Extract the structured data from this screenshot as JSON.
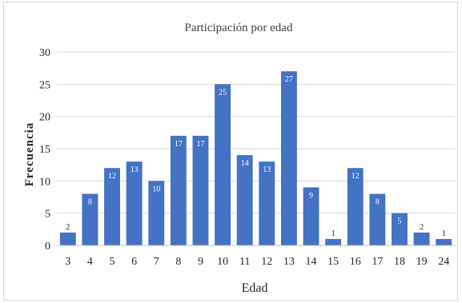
{
  "chart_data": {
    "type": "bar",
    "title": "Participación por edad",
    "xlabel": "Edad",
    "ylabel": "Frecuencia",
    "categories": [
      "3",
      "4",
      "5",
      "6",
      "7",
      "8",
      "9",
      "10",
      "11",
      "12",
      "13",
      "14",
      "15",
      "16",
      "17",
      "18",
      "19",
      "24"
    ],
    "values": [
      2,
      8,
      12,
      13,
      10,
      17,
      17,
      25,
      14,
      13,
      27,
      9,
      1,
      12,
      8,
      5,
      2,
      1
    ],
    "ylim": [
      0,
      30
    ],
    "yticks": [
      0,
      5,
      10,
      15,
      20,
      25,
      30
    ],
    "grid": true,
    "legend": "none",
    "bar_color": "#4472c4",
    "label_color_inside": "#ffffff",
    "label_color_outside": "#262626",
    "gridline_color": "#d9d9d9"
  }
}
